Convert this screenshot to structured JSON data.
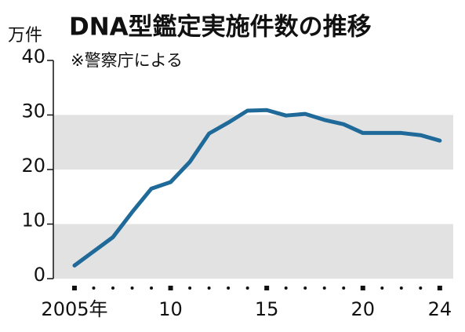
{
  "chart_data": {
    "type": "line",
    "title": "DNA型鑑定実施件数の推移",
    "subtitle": "※警察庁による",
    "y_label": "万件",
    "x": [
      2005,
      2006,
      2007,
      2008,
      2009,
      2010,
      2011,
      2012,
      2013,
      2014,
      2015,
      2016,
      2017,
      2018,
      2019,
      2020,
      2021,
      2022,
      2023,
      2024
    ],
    "series": [
      {
        "color": "#1f6a99",
        "values": [
          2.4,
          5.0,
          7.6,
          12.2,
          16.5,
          17.7,
          21.4,
          26.6,
          28.6,
          30.8,
          30.9,
          29.9,
          30.2,
          29.1,
          28.3,
          26.7,
          26.7,
          26.7,
          26.3,
          25.3
        ]
      }
    ],
    "xlim": [
      2003.9,
      2024.7
    ],
    "xticks": [
      {
        "value": 2005,
        "label": "2005年"
      },
      {
        "value": 2010,
        "label": "10"
      },
      {
        "value": 2015,
        "label": "15"
      },
      {
        "value": 2020,
        "label": "20"
      },
      {
        "value": 2024,
        "label": "24"
      }
    ],
    "ylim": [
      0,
      40
    ],
    "yticks": [
      0,
      10,
      20,
      30,
      40
    ],
    "band_color": "#e2e2e2",
    "alternating_bands": true
  }
}
